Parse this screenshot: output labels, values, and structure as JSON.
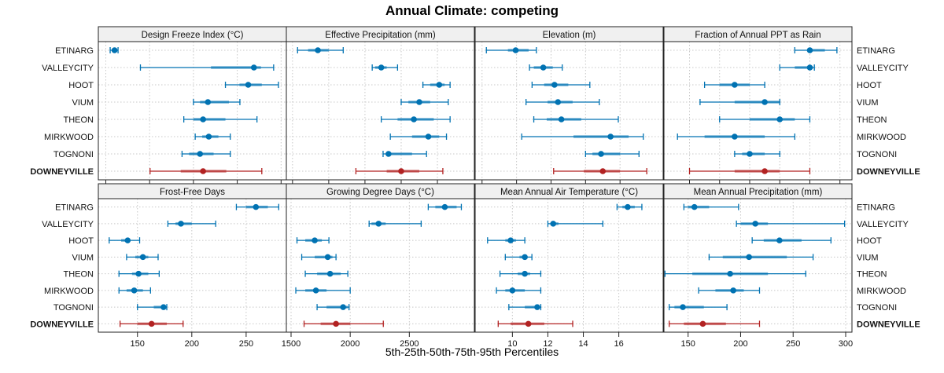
{
  "chart_data": {
    "type": "dot-interval",
    "title": "Annual Climate: competing",
    "xlabel": "5th-25th-50th-75th-95th Percentiles",
    "ylabel": "",
    "grid": true,
    "colors": {
      "competing": "#0072B2",
      "highlight": "#B22222",
      "strip": "#F0F0F0",
      "grid": "#C8C8C8"
    },
    "sites": [
      "ETINARG",
      "VALLEYCITY",
      "HOOT",
      "VIUM",
      "THEON",
      "MIRKWOOD",
      "TOGNONI",
      "DOWNEYVILLE"
    ],
    "highlight_site": "DOWNEYVILLE",
    "panels": [
      {
        "title": "Design Freeze Index (°C)",
        "xlim": [
          -17,
          412
        ],
        "ticks": [
          0,
          100,
          200,
          300,
          400
        ],
        "values": [
          [
            10,
            14,
            20,
            25,
            28
          ],
          [
            79,
            240,
            338,
            354,
            383
          ],
          [
            273,
            305,
            325,
            356,
            394
          ],
          [
            200,
            215,
            233,
            281,
            306
          ],
          [
            178,
            200,
            222,
            273,
            345
          ],
          [
            204,
            220,
            235,
            257,
            284
          ],
          [
            174,
            190,
            215,
            246,
            284
          ],
          [
            101,
            171,
            222,
            275,
            356
          ]
        ]
      },
      {
        "title": "Effective Precipitation (mm)",
        "xlim": [
          -817,
          -298
        ],
        "ticks": [
          -800,
          -700,
          -600,
          -500,
          -400
        ],
        "values": [
          [
            -786,
            -757,
            -730,
            -700,
            -660
          ],
          [
            -580,
            -572,
            -555,
            -540,
            -510
          ],
          [
            -440,
            -420,
            -395,
            -380,
            -365
          ],
          [
            -500,
            -480,
            -450,
            -420,
            -370
          ],
          [
            -555,
            -510,
            -465,
            -410,
            -365
          ],
          [
            -530,
            -470,
            -425,
            -395,
            -375
          ],
          [
            -550,
            -540,
            -535,
            -470,
            -430
          ],
          [
            -625,
            -540,
            -500,
            -450,
            -385
          ]
        ]
      },
      {
        "title": "Elevation (m)",
        "xlim": [
          960,
          2050
        ],
        "ticks": [
          1000,
          1200,
          1400,
          1600,
          1800
        ],
        "values": [
          [
            1025,
            1150,
            1195,
            1270,
            1315
          ],
          [
            1275,
            1300,
            1355,
            1410,
            1465
          ],
          [
            1290,
            1360,
            1420,
            1500,
            1625
          ],
          [
            1255,
            1380,
            1440,
            1525,
            1680
          ],
          [
            1300,
            1375,
            1460,
            1575,
            1790
          ],
          [
            1230,
            1530,
            1745,
            1850,
            1935
          ],
          [
            1600,
            1640,
            1690,
            1800,
            1910
          ],
          [
            1415,
            1590,
            1700,
            1800,
            1955
          ]
        ]
      },
      {
        "title": "Fraction of Annual PPT as Rain",
        "xlim": [
          86.3,
          98.8
        ],
        "ticks": [
          88,
          90,
          92,
          94,
          96,
          98
        ],
        "values": [
          [
            95,
            96,
            96,
            97,
            97.8
          ],
          [
            94,
            95,
            96,
            96.2,
            96.3
          ],
          [
            89,
            90,
            91,
            92,
            93
          ],
          [
            88.7,
            91,
            93,
            94,
            94
          ],
          [
            90,
            92,
            94,
            95,
            96
          ],
          [
            87.2,
            89,
            91,
            93,
            95
          ],
          [
            91,
            91.5,
            92,
            93,
            94
          ],
          [
            88,
            91,
            93,
            94,
            96
          ]
        ]
      },
      {
        "title": "Frost-Free Days",
        "xlim": [
          114,
          287
        ],
        "ticks": [
          150,
          200,
          250
        ],
        "values": [
          [
            241,
            250,
            259,
            270,
            280
          ],
          [
            178,
            185,
            190,
            200,
            222
          ],
          [
            124,
            135,
            141,
            143,
            152
          ],
          [
            140,
            148,
            155,
            160,
            169
          ],
          [
            133,
            145,
            151,
            160,
            170
          ],
          [
            133,
            140,
            147,
            155,
            162
          ],
          [
            150,
            165,
            174,
            176,
            177
          ],
          [
            134,
            150,
            163,
            177,
            192
          ]
        ]
      },
      {
        "title": "Growing Degree Days (°C)",
        "xlim": [
          1460,
          3050
        ],
        "ticks": [
          1500,
          2000,
          2500
        ],
        "values": [
          [
            2660,
            2720,
            2800,
            2900,
            2940
          ],
          [
            2160,
            2180,
            2240,
            2300,
            2600
          ],
          [
            1550,
            1620,
            1700,
            1760,
            1820
          ],
          [
            1590,
            1700,
            1810,
            1850,
            1880
          ],
          [
            1620,
            1720,
            1830,
            1920,
            1980
          ],
          [
            1540,
            1620,
            1710,
            1800,
            2000
          ],
          [
            1720,
            1800,
            1940,
            1980,
            1990
          ],
          [
            1610,
            1750,
            1880,
            2000,
            2280
          ]
        ]
      },
      {
        "title": "Mean Annual Air Temperature (°C)",
        "xlim": [
          7.9,
          18.5
        ],
        "ticks": [
          10,
          12,
          14,
          16
        ],
        "values": [
          [
            15.9,
            16.2,
            16.5,
            16.9,
            17.3
          ],
          [
            12.0,
            12.2,
            12.3,
            12.6,
            15.1
          ],
          [
            8.6,
            9.6,
            9.9,
            10.2,
            10.7
          ],
          [
            9.6,
            10.4,
            10.7,
            10.8,
            11.1
          ],
          [
            9.3,
            10.3,
            10.7,
            11.0,
            11.6
          ],
          [
            9.1,
            9.6,
            10.0,
            10.7,
            11.6
          ],
          [
            9.8,
            10.7,
            11.4,
            11.5,
            11.6
          ],
          [
            9.2,
            9.9,
            10.9,
            11.8,
            13.4
          ]
        ]
      },
      {
        "title": "Mean Annual Precipitation (mm)",
        "xlim": [
          127,
          306
        ],
        "ticks": [
          150,
          200,
          250,
          300
        ],
        "values": [
          [
            146,
            150,
            156,
            170,
            198
          ],
          [
            196,
            200,
            214,
            226,
            299
          ],
          [
            211,
            222,
            237,
            258,
            286
          ],
          [
            170,
            183,
            208,
            244,
            269
          ],
          [
            128,
            154,
            190,
            226,
            262
          ],
          [
            160,
            176,
            193,
            203,
            218
          ],
          [
            132,
            137,
            145,
            165,
            187
          ],
          [
            132,
            146,
            164,
            186,
            218
          ]
        ]
      }
    ]
  }
}
